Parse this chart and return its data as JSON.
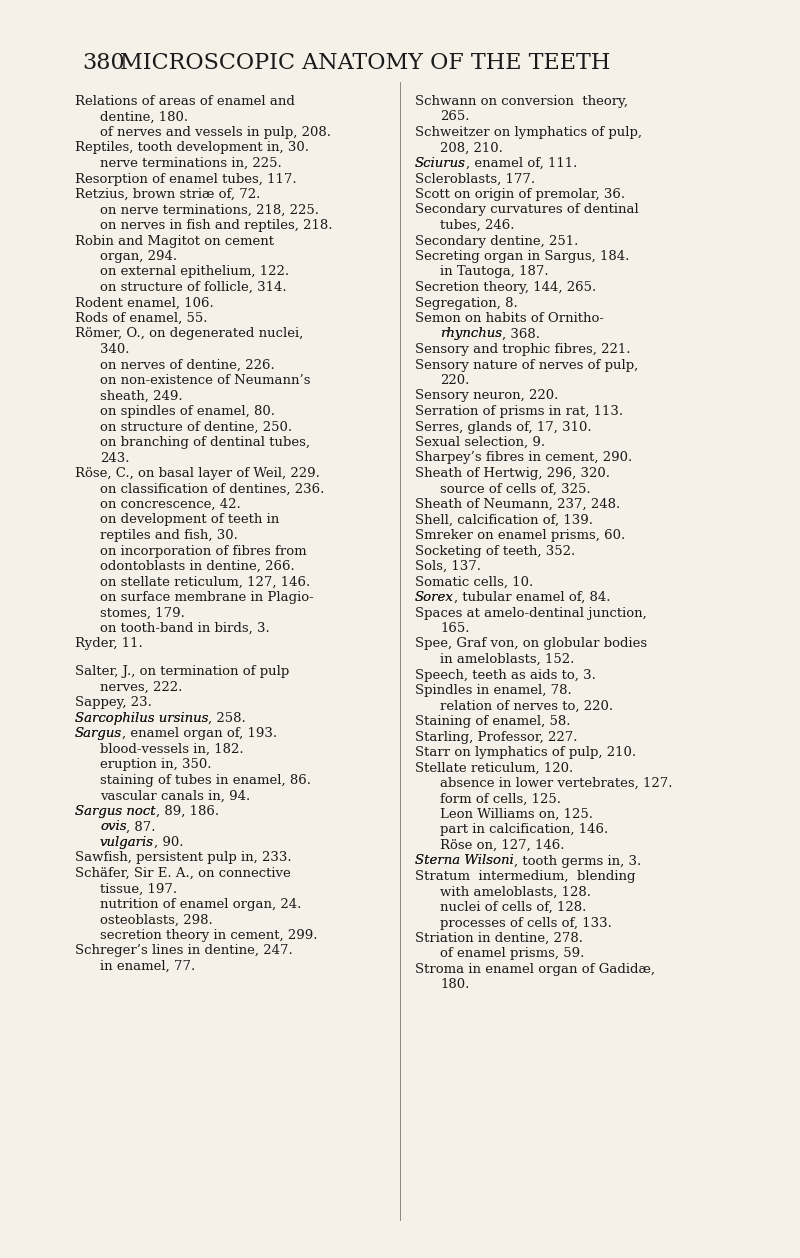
{
  "background_color": "#f5f0e8",
  "header_number": "380",
  "header_title": "MICROSCOPIC ANATOMY OF THE TEETH",
  "left_column": [
    {
      "text": "Relations of areas of enamel and\n    dentine, 180.",
      "indent": 0,
      "italic": false,
      "italic_part": ""
    },
    {
      "text": "    of nerves and vessels in pulp, 208.",
      "indent": 1,
      "italic": false,
      "italic_part": ""
    },
    {
      "text": "Reptiles, tooth development in, 30.",
      "indent": 0,
      "italic": false,
      "italic_part": ""
    },
    {
      "text": "    nerve terminations in, 225.",
      "indent": 1,
      "italic": false,
      "italic_part": ""
    },
    {
      "text": "Resorption of enamel tubes, 117.",
      "indent": 0,
      "italic": false,
      "italic_part": ""
    },
    {
      "text": "Retzius, brown striæ of, 72.",
      "indent": 0,
      "italic": false,
      "italic_part": ""
    },
    {
      "text": "    on nerve terminations, 218, 225.",
      "indent": 1,
      "italic": false,
      "italic_part": ""
    },
    {
      "text": "    on nerves in fish and reptiles, 218.",
      "indent": 1,
      "italic": false,
      "italic_part": ""
    },
    {
      "text": "Robin and Magitot on cement\n    organ, 294.",
      "indent": 0,
      "italic": false,
      "italic_part": ""
    },
    {
      "text": "    on external epithelium, 122.",
      "indent": 1,
      "italic": false,
      "italic_part": ""
    },
    {
      "text": "    on structure of follicle, 314.",
      "indent": 1,
      "italic": false,
      "italic_part": ""
    },
    {
      "text": "Rodent enamel, 106.",
      "indent": 0,
      "italic": false,
      "italic_part": ""
    },
    {
      "text": "Rods of enamel, 55.",
      "indent": 0,
      "italic": false,
      "italic_part": ""
    },
    {
      "text": "Römer, O., on degenerated nuclei,\n    340.",
      "indent": 0,
      "italic": false,
      "italic_part": ""
    },
    {
      "text": "    on nerves of dentine, 226.",
      "indent": 1,
      "italic": false,
      "italic_part": ""
    },
    {
      "text": "    on non-existence of Neumann’s\n    sheath, 249.",
      "indent": 1,
      "italic": false,
      "italic_part": ""
    },
    {
      "text": "    on spindles of enamel, 80.",
      "indent": 1,
      "italic": false,
      "italic_part": ""
    },
    {
      "text": "    on structure of dentine, 250.",
      "indent": 1,
      "italic": false,
      "italic_part": ""
    },
    {
      "text": "    on branching of dentinal tubes,\n    243.",
      "indent": 1,
      "italic": false,
      "italic_part": ""
    },
    {
      "text": "Röse, C., on basal layer of Weil, 229.",
      "indent": 0,
      "italic": false,
      "italic_part": ""
    },
    {
      "text": "    on classification of dentines, 236.",
      "indent": 1,
      "italic": false,
      "italic_part": ""
    },
    {
      "text": "    on concrescence, 42.",
      "indent": 1,
      "italic": false,
      "italic_part": ""
    },
    {
      "text": "    on development of teeth in\n    reptiles and fish, 30.",
      "indent": 1,
      "italic": false,
      "italic_part": ""
    },
    {
      "text": "    on incorporation of fibres from\n    odontoblasts in dentine, 266.",
      "indent": 1,
      "italic": false,
      "italic_part": ""
    },
    {
      "text": "    on stellate reticulum, 127, 146.",
      "indent": 1,
      "italic": false,
      "italic_part": ""
    },
    {
      "text": "    on surface membrane in Plagio-\n    stomes, 179.",
      "indent": 1,
      "italic": false,
      "italic_part": ""
    },
    {
      "text": "    on tooth-band in birds, 3.",
      "indent": 1,
      "italic": false,
      "italic_part": ""
    },
    {
      "text": "Ryder, 11.",
      "indent": 0,
      "italic": false,
      "italic_part": ""
    },
    {
      "text": "",
      "indent": 0,
      "italic": false,
      "italic_part": ""
    },
    {
      "text": "Salter, J., on termination of pulp\n    nerves, 222.",
      "indent": 0,
      "italic": false,
      "italic_part": ""
    },
    {
      "text": "Sappey, 23.",
      "indent": 0,
      "italic": false,
      "italic_part": ""
    },
    {
      "text": "Sarcophilus ursinus, 258.",
      "indent": 0,
      "italic": true,
      "italic_part": "Sarcophilus ursinus"
    },
    {
      "text": "Sargus, enamel organ of, 193.",
      "indent": 0,
      "italic": true,
      "italic_part": "Sargus"
    },
    {
      "text": "    blood-vessels in, 182.",
      "indent": 1,
      "italic": false,
      "italic_part": ""
    },
    {
      "text": "    eruption in, 350.",
      "indent": 1,
      "italic": false,
      "italic_part": ""
    },
    {
      "text": "    staining of tubes in enamel, 86.",
      "indent": 1,
      "italic": false,
      "italic_part": ""
    },
    {
      "text": "    vascular canals in, 94.",
      "indent": 1,
      "italic": false,
      "italic_part": ""
    },
    {
      "text": "Sargus noct, 89, 186.",
      "indent": 0,
      "italic": true,
      "italic_part": "Sargus noct"
    },
    {
      "text": "    ovis, 87.",
      "indent": 1,
      "italic": true,
      "italic_part": "ovis"
    },
    {
      "text": "    vulgaris, 90.",
      "indent": 1,
      "italic": true,
      "italic_part": "vulgaris"
    },
    {
      "text": "Sawfish, persistent pulp in, 233.",
      "indent": 0,
      "italic": false,
      "italic_part": ""
    },
    {
      "text": "Schäfer, Sir E. A., on connective\n    tissue, 197.",
      "indent": 0,
      "italic": false,
      "italic_part": ""
    },
    {
      "text": "    nutrition of enamel organ, 24.",
      "indent": 1,
      "italic": false,
      "italic_part": ""
    },
    {
      "text": "    osteoblasts, 298.",
      "indent": 1,
      "italic": false,
      "italic_part": ""
    },
    {
      "text": "    secretion theory in cement, 299.",
      "indent": 1,
      "italic": false,
      "italic_part": ""
    },
    {
      "text": "Schreger’s lines in dentine, 247.",
      "indent": 0,
      "italic": false,
      "italic_part": ""
    },
    {
      "text": "    in enamel, 77.",
      "indent": 1,
      "italic": false,
      "italic_part": ""
    }
  ],
  "right_column": [
    {
      "text": "Schwann on conversion  theory,\n    265.",
      "indent": 0,
      "italic": false,
      "italic_part": ""
    },
    {
      "text": "Schweitzer on lymphatics of pulp,\n    208, 210.",
      "indent": 0,
      "italic": false,
      "italic_part": ""
    },
    {
      "text": "Sciurus, enamel of, 111.",
      "indent": 0,
      "italic": true,
      "italic_part": "Sciurus"
    },
    {
      "text": "Scleroblasts, 177.",
      "indent": 0,
      "italic": false,
      "italic_part": ""
    },
    {
      "text": "Scott on origin of premolar, 36.",
      "indent": 0,
      "italic": false,
      "italic_part": ""
    },
    {
      "text": "Secondary curvatures of dentinal\n    tubes, 246.",
      "indent": 0,
      "italic": false,
      "italic_part": ""
    },
    {
      "text": "Secondary dentine, 251.",
      "indent": 0,
      "italic": false,
      "italic_part": ""
    },
    {
      "text": "Secreting organ in Sargus, 184.",
      "indent": 0,
      "italic": true,
      "italic_part": "Sargus"
    },
    {
      "text": "    in Tautoga, 187.",
      "indent": 1,
      "italic": true,
      "italic_part": "Tautoga"
    },
    {
      "text": "Secretion theory, 144, 265.",
      "indent": 0,
      "italic": false,
      "italic_part": ""
    },
    {
      "text": "Segregation, 8.",
      "indent": 0,
      "italic": false,
      "italic_part": ""
    },
    {
      "text": "Semon on habits of Ornitho-\n    rhynchus, 368.",
      "indent": 0,
      "italic": true,
      "italic_part": "Ornitho-\nrhynchus"
    },
    {
      "text": "Sensory and trophic fibres, 221.",
      "indent": 0,
      "italic": false,
      "italic_part": ""
    },
    {
      "text": "Sensory nature of nerves of pulp,\n    220.",
      "indent": 0,
      "italic": false,
      "italic_part": ""
    },
    {
      "text": "Sensory neuron, 220.",
      "indent": 0,
      "italic": false,
      "italic_part": ""
    },
    {
      "text": "Serration of prisms in rat, 113.",
      "indent": 0,
      "italic": false,
      "italic_part": ""
    },
    {
      "text": "Serres, glands of, 17, 310.",
      "indent": 0,
      "italic": false,
      "italic_part": ""
    },
    {
      "text": "Sexual selection, 9.",
      "indent": 0,
      "italic": false,
      "italic_part": ""
    },
    {
      "text": "Sharpey’s fibres in cement, 290.",
      "indent": 0,
      "italic": false,
      "italic_part": ""
    },
    {
      "text": "Sheath of Hertwig, 296, 320.",
      "indent": 0,
      "italic": false,
      "italic_part": ""
    },
    {
      "text": "    source of cells of, 325.",
      "indent": 1,
      "italic": false,
      "italic_part": ""
    },
    {
      "text": "Sheath of Neumann, 237, 248.",
      "indent": 0,
      "italic": false,
      "italic_part": ""
    },
    {
      "text": "Shell, calcification of, 139.",
      "indent": 0,
      "italic": false,
      "italic_part": ""
    },
    {
      "text": "Smreker on enamel prisms, 60.",
      "indent": 0,
      "italic": false,
      "italic_part": ""
    },
    {
      "text": "Socketing of teeth, 352.",
      "indent": 0,
      "italic": false,
      "italic_part": ""
    },
    {
      "text": "Sols, 137.",
      "indent": 0,
      "italic": false,
      "italic_part": ""
    },
    {
      "text": "Somatic cells, 10.",
      "indent": 0,
      "italic": false,
      "italic_part": ""
    },
    {
      "text": "Sorex, tubular enamel of, 84.",
      "indent": 0,
      "italic": true,
      "italic_part": "Sorex"
    },
    {
      "text": "Spaces at amelo-dentinal junction,\n    165.",
      "indent": 0,
      "italic": false,
      "italic_part": ""
    },
    {
      "text": "Spee, Graf von, on globular bodies\n    in ameloblasts, 152.",
      "indent": 0,
      "italic": false,
      "italic_part": ""
    },
    {
      "text": "Speech, teeth as aids to, 3.",
      "indent": 0,
      "italic": false,
      "italic_part": ""
    },
    {
      "text": "Spindles in enamel, 78.",
      "indent": 0,
      "italic": false,
      "italic_part": ""
    },
    {
      "text": "    relation of nerves to, 220.",
      "indent": 1,
      "italic": false,
      "italic_part": ""
    },
    {
      "text": "Staining of enamel, 58.",
      "indent": 0,
      "italic": false,
      "italic_part": ""
    },
    {
      "text": "Starling, Professor, 227.",
      "indent": 0,
      "italic": false,
      "italic_part": ""
    },
    {
      "text": "Starr on lymphatics of pulp, 210.",
      "indent": 0,
      "italic": false,
      "italic_part": ""
    },
    {
      "text": "Stellate reticulum, 120.",
      "indent": 0,
      "italic": false,
      "italic_part": ""
    },
    {
      "text": "    absence in lower vertebrates, 127.",
      "indent": 1,
      "italic": false,
      "italic_part": ""
    },
    {
      "text": "    form of cells, 125.",
      "indent": 1,
      "italic": false,
      "italic_part": ""
    },
    {
      "text": "    Leon Williams on, 125.",
      "indent": 1,
      "italic": false,
      "italic_part": ""
    },
    {
      "text": "    part in calcification, 146.",
      "indent": 1,
      "italic": false,
      "italic_part": ""
    },
    {
      "text": "    Röse on, 127, 146.",
      "indent": 1,
      "italic": false,
      "italic_part": ""
    },
    {
      "text": "Sterna Wilsoni, tooth germs in, 3.",
      "indent": 0,
      "italic": true,
      "italic_part": "Sterna Wilsoni"
    },
    {
      "text": "Stratum  intermedium,  blending\n    with ameloblasts, 128.",
      "indent": 0,
      "italic": false,
      "italic_part": ""
    },
    {
      "text": "    nuclei of cells of, 128.",
      "indent": 1,
      "italic": false,
      "italic_part": ""
    },
    {
      "text": "    processes of cells of, 133.",
      "indent": 1,
      "italic": false,
      "italic_part": ""
    },
    {
      "text": "Striation in dentine, 278.",
      "indent": 0,
      "italic": false,
      "italic_part": ""
    },
    {
      "text": "    of enamel prisms, 59.",
      "indent": 1,
      "italic": false,
      "italic_part": ""
    },
    {
      "text": "Stroma in enamel organ of Gadidæ,\n    180.",
      "indent": 0,
      "italic": false,
      "italic_part": ""
    }
  ],
  "font_size": 9.5,
  "header_font_size": 16,
  "text_color": "#1a1a1a",
  "line_color": "#888888"
}
